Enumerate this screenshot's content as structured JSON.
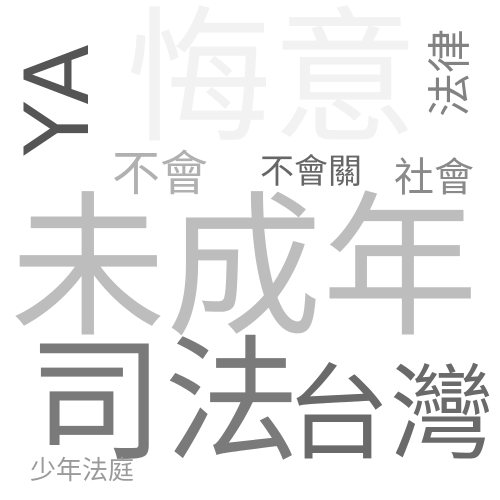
{
  "words": [
    {
      "key": "ya",
      "text": "YA",
      "color": "#555555"
    },
    {
      "key": "huiyi",
      "text": "悔意",
      "color": "#f2f2f2"
    },
    {
      "key": "falv",
      "text": "法律",
      "color": "#828282"
    },
    {
      "key": "buhui",
      "text": "不會",
      "color": "#b0b0b0"
    },
    {
      "key": "buhuiguan",
      "text": "不會關",
      "color": "#666666"
    },
    {
      "key": "shehui",
      "text": "社會",
      "color": "#8a8a8a"
    },
    {
      "key": "weichengnian",
      "text": "未成年",
      "color": "#bdbdbd"
    },
    {
      "key": "sifa",
      "text": "司法",
      "color": "#7a7a7a"
    },
    {
      "key": "taiwan",
      "text": "台灣",
      "color": "#6a6a6a"
    },
    {
      "key": "shaonianfating",
      "text": "少年法庭",
      "color": "#9a9a9a"
    }
  ]
}
